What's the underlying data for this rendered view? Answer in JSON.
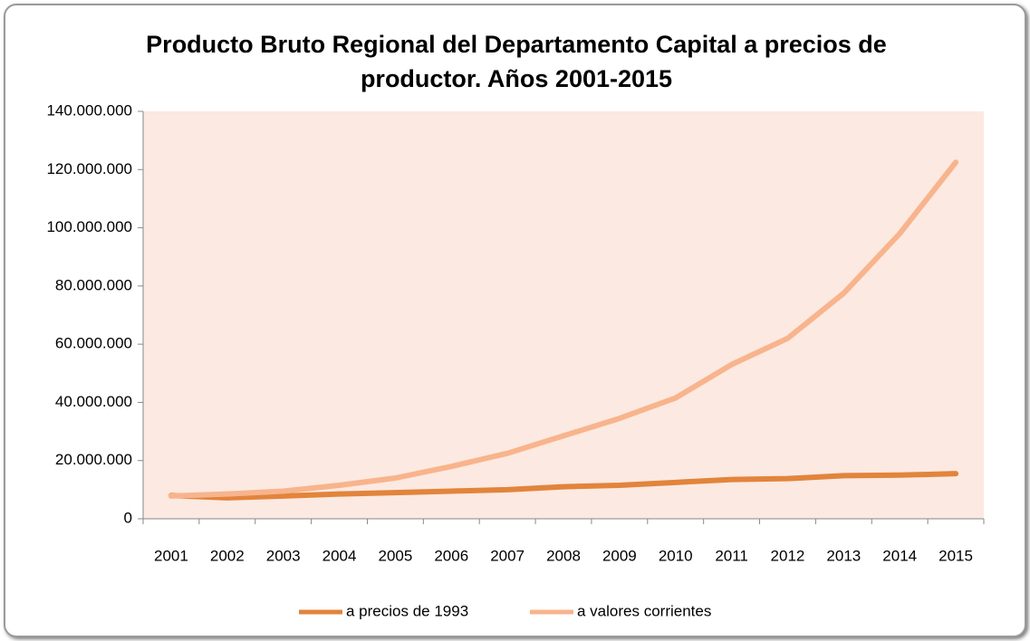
{
  "chart_data": {
    "type": "line",
    "title": "Producto Bruto Regional del Departamento Capital a precios de productor. Años 2001-2015",
    "categories": [
      "2001",
      "2002",
      "2003",
      "2004",
      "2005",
      "2006",
      "2007",
      "2008",
      "2009",
      "2010",
      "2011",
      "2012",
      "2013",
      "2014",
      "2015"
    ],
    "series": [
      {
        "name": "a precios de 1993",
        "color": "#e2843c",
        "values": [
          8000000,
          7200000,
          7800000,
          8500000,
          9000000,
          9500000,
          10000000,
          11000000,
          11500000,
          12500000,
          13500000,
          13800000,
          14800000,
          15000000,
          15500000
        ]
      },
      {
        "name": "a valores corrientes",
        "color": "#f8b48c",
        "values": [
          7800000,
          8500000,
          9500000,
          11500000,
          14000000,
          18000000,
          22500000,
          28500000,
          34500000,
          41500000,
          53000000,
          62000000,
          77500000,
          98000000,
          122500000
        ]
      }
    ],
    "ylim": [
      0,
      140000000
    ],
    "yticks": [
      0,
      {
        "value": 20000000,
        "label": "20.000.000"
      },
      {
        "value": 40000000,
        "label": "40.000.000"
      },
      {
        "value": 60000000,
        "label": "60.000.000"
      },
      {
        "value": 80000000,
        "label": "80.000.000"
      },
      {
        "value": 100000000,
        "label": "100.000.000"
      },
      {
        "value": 120000000,
        "label": "120.000.000"
      },
      {
        "value": 140000000,
        "label": "140.000.000"
      }
    ],
    "legend": "bottom",
    "plot_background": "#fce9e1"
  }
}
